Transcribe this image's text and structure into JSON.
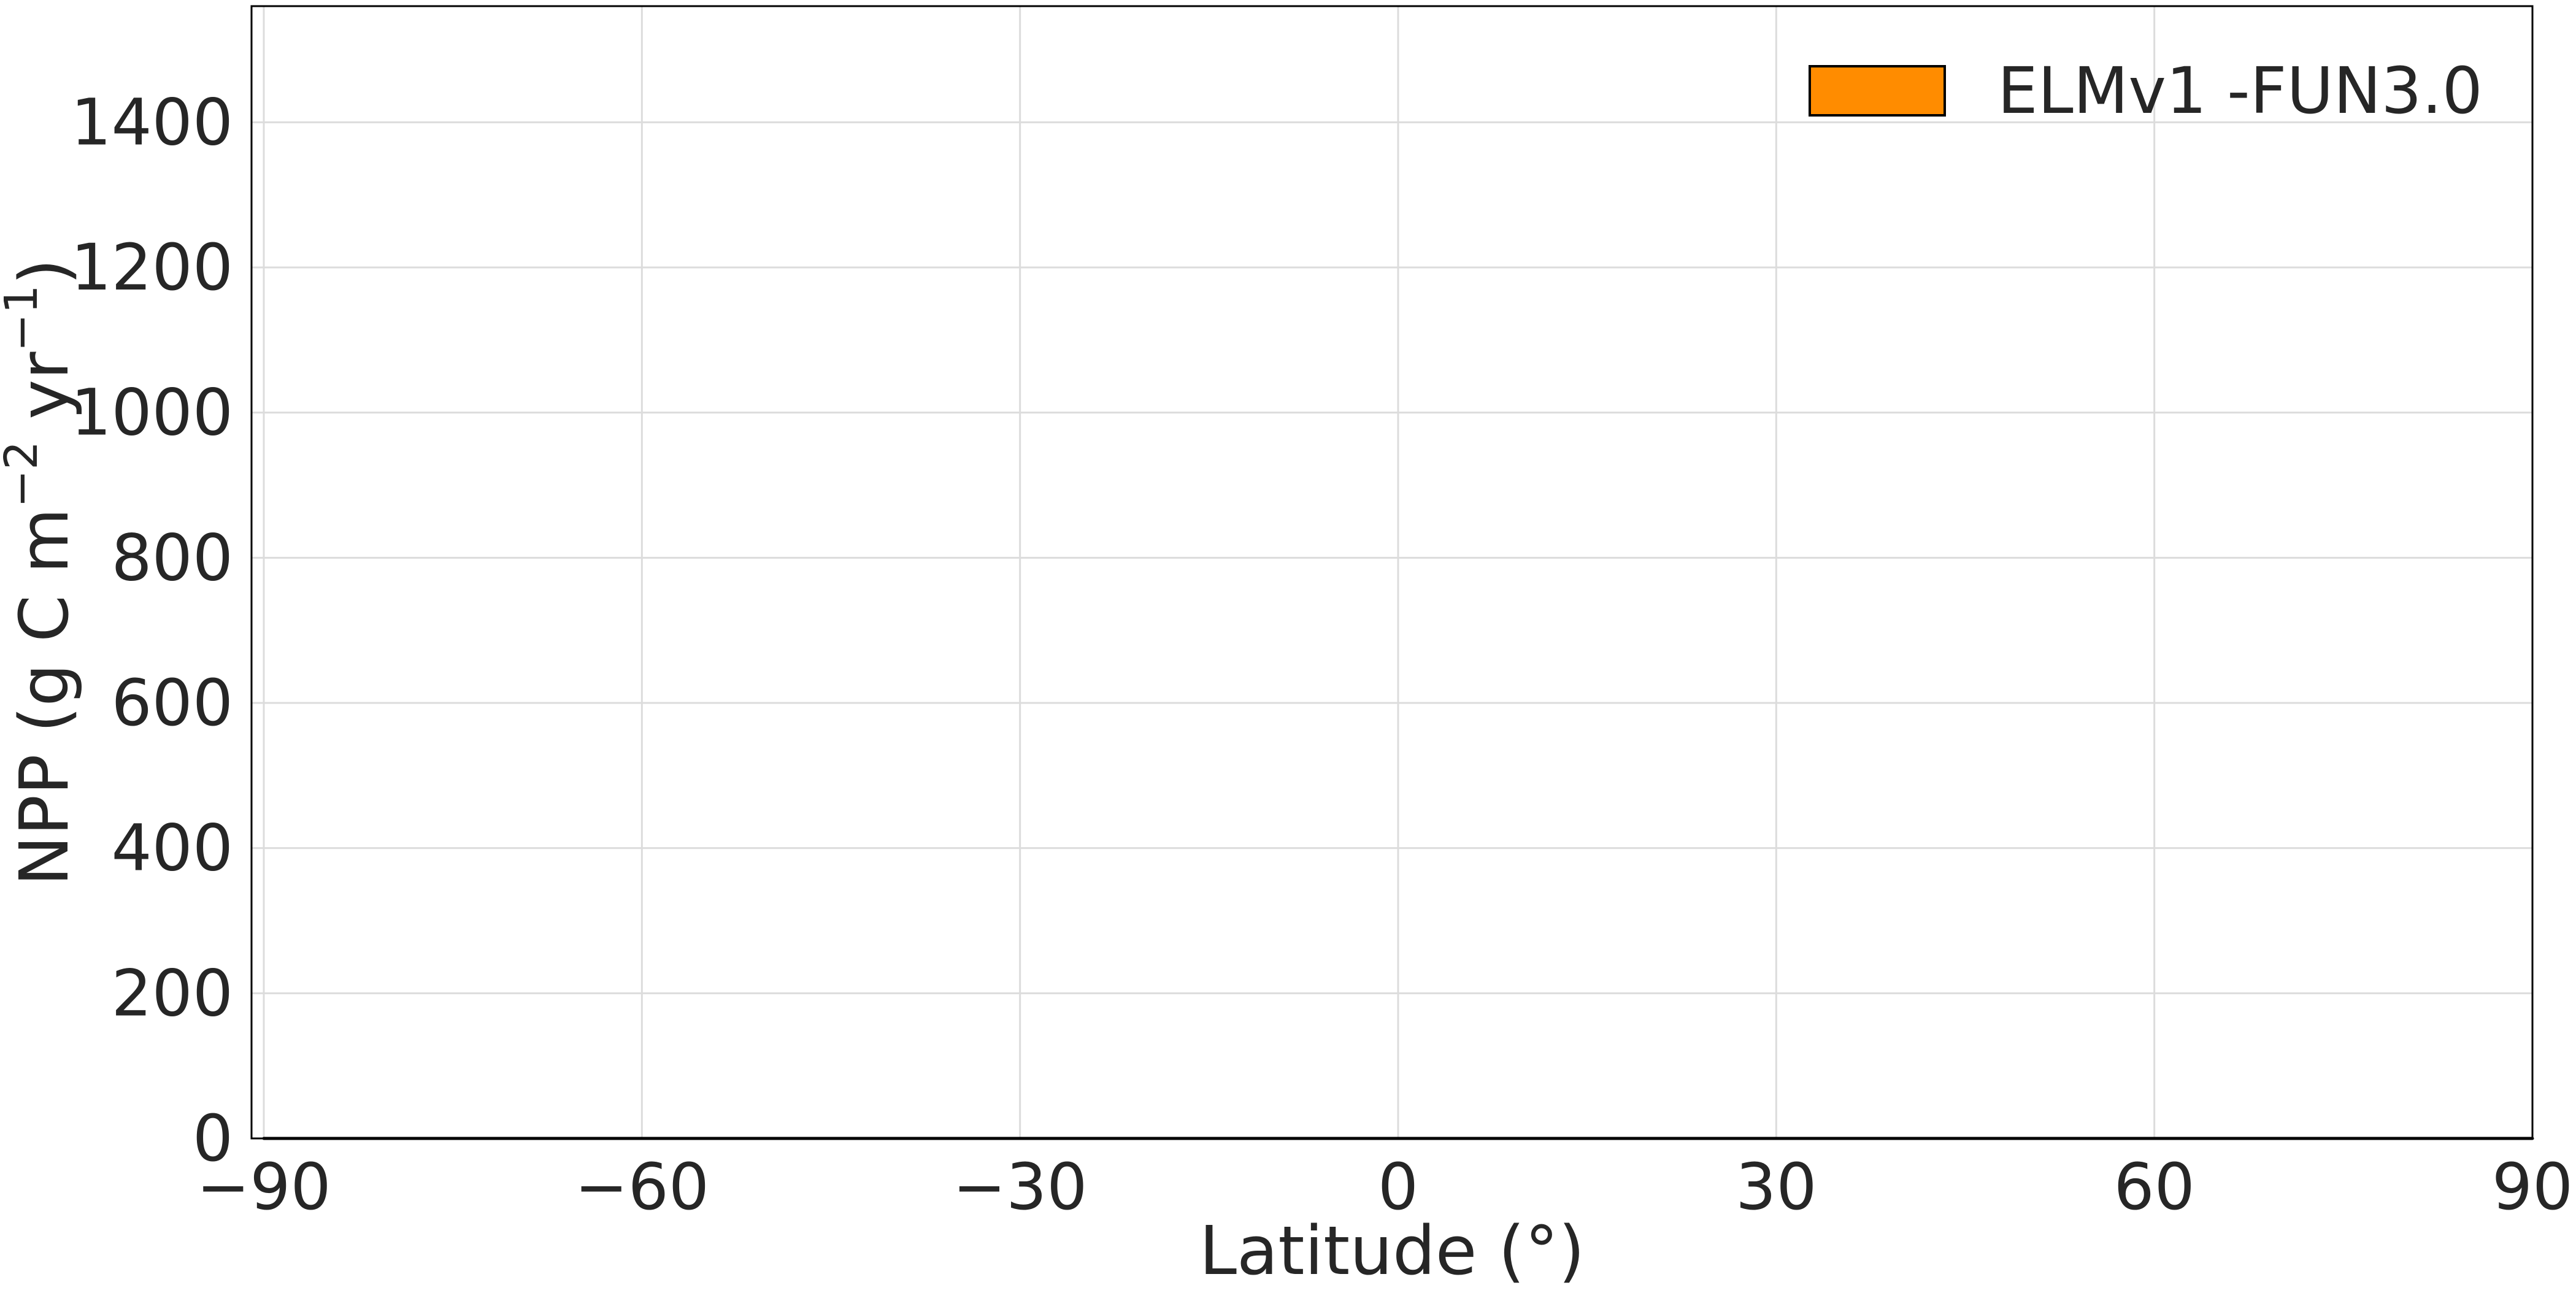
{
  "chart_data": {
    "type": "area",
    "stacked": true,
    "xlabel": "Latitude (°)",
    "ylabel": "NPP (g C m",
    "ylabel_sup1": "−2",
    "ylabel_mid": " yr",
    "ylabel_sup2": "−1",
    "ylabel_end": ")",
    "xlim": [
      -90,
      90
    ],
    "ylim": [
      0,
      1560
    ],
    "xticks": [
      -90,
      -60,
      -30,
      0,
      30,
      60,
      90
    ],
    "xtick_labels": [
      "−90",
      "−60",
      "−30",
      "0",
      "30",
      "60",
      "90"
    ],
    "yticks": [
      0,
      200,
      400,
      600,
      800,
      1000,
      1200,
      1400
    ],
    "ytick_labels": [
      "0",
      "200",
      "400",
      "600",
      "800",
      "1000",
      "1200",
      "1400"
    ],
    "grid": true,
    "legend_position": "top-right",
    "x": [
      -90,
      -88,
      -86,
      -84,
      -82,
      -80,
      -78,
      -76,
      -74,
      -72,
      -70,
      -68,
      -66,
      -64,
      -62,
      -60,
      -58,
      -56,
      -54,
      -52,
      -50,
      -48,
      -46,
      -44,
      -42,
      -40,
      -38,
      -36,
      -34,
      -32,
      -30,
      -28,
      -26,
      -24,
      -22,
      -20,
      -18,
      -16,
      -14,
      -12,
      -10,
      -8,
      -6,
      -4,
      -2,
      0,
      2,
      4,
      6,
      8,
      10,
      12,
      14,
      16,
      18,
      20,
      22,
      24,
      26,
      28,
      30,
      32,
      34,
      36,
      38,
      40,
      42,
      44,
      46,
      48,
      50,
      52,
      54,
      56,
      58,
      60,
      62,
      64,
      66,
      68,
      70,
      72,
      74,
      76,
      78,
      80,
      82,
      84,
      86,
      88,
      90
    ],
    "series": [
      {
        "name": "ELMv1 -FUN3.0",
        "color": "#ff8c00",
        "cumulative": [
          0,
          0,
          0,
          0,
          0,
          0,
          0,
          0,
          0,
          0,
          0,
          0,
          0,
          0,
          0,
          0,
          0,
          0,
          0,
          0,
          0,
          0,
          0,
          0,
          0,
          0,
          0,
          0,
          0,
          0,
          0,
          0,
          0,
          0,
          0,
          0,
          0,
          0,
          0,
          0,
          0,
          0,
          0,
          0,
          0,
          0,
          0,
          0,
          0,
          0,
          0,
          0,
          0,
          0,
          0,
          0,
          0,
          0,
          0,
          0,
          0,
          0,
          0,
          0,
          0,
          0,
          0,
          0,
          0,
          0,
          0,
          0,
          0,
          0,
          0,
          0,
          0,
          0,
          0,
          0,
          0,
          0,
          0,
          0,
          0,
          0,
          0,
          0,
          0,
          0,
          0
        ],
        "values": [
          0,
          0,
          0,
          0,
          0,
          0,
          0,
          0,
          0,
          0,
          0,
          0,
          0,
          0,
          0,
          0,
          0,
          0,
          0,
          0,
          0,
          0,
          0,
          0,
          0,
          0,
          0,
          0,
          0,
          0,
          0,
          0,
          0,
          0,
          0,
          0,
          0,
          0,
          0,
          0,
          0,
          0,
          0,
          0,
          0,
          0,
          0,
          0,
          0,
          0,
          0,
          0,
          0,
          0,
          0,
          0,
          0,
          0,
          0,
          0,
          0,
          0,
          0,
          0,
          0,
          0,
          0,
          0,
          0,
          0,
          0,
          0,
          0,
          0,
          0,
          0,
          0,
          0,
          0,
          0,
          0,
          0,
          0,
          0,
          0,
          0,
          0,
          0,
          0,
          0,
          0
        ]
      }
    ]
  }
}
